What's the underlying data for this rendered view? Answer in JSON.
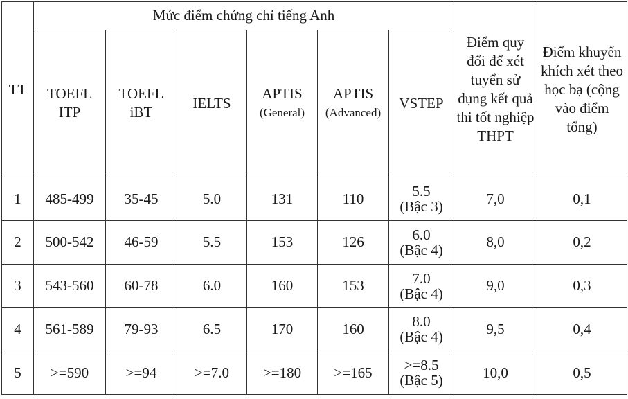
{
  "table": {
    "col_tt": "TT",
    "group_header": "Mức điểm chứng chỉ tiếng Anh",
    "col_conversion": "Điểm quy đổi để xét tuyển sử dụng kết quả thi tốt nghiệp THPT",
    "col_bonus": "Điểm khuyến khích xét theo học bạ (cộng vào điểm tổng)",
    "sub_headers": [
      {
        "line1": "TOEFL",
        "line2": "ITP"
      },
      {
        "line1": "TOEFL",
        "line2": "iBT"
      },
      {
        "line1": "IELTS",
        "line2": ""
      },
      {
        "line1": "APTIS",
        "line2": "(General)"
      },
      {
        "line1": "APTIS",
        "line2": "(Advanced)"
      },
      {
        "line1": "VSTEP",
        "line2": ""
      }
    ],
    "rows": [
      {
        "tt": "1",
        "itp": "485-499",
        "ibt": "35-45",
        "ielts": "5.0",
        "aptis_g": "131",
        "aptis_a": "110",
        "vstep": "5.5",
        "vstep_level": "(Bậc 3)",
        "conversion": "7,0",
        "bonus": "0,1"
      },
      {
        "tt": "2",
        "itp": "500-542",
        "ibt": "46-59",
        "ielts": "5.5",
        "aptis_g": "153",
        "aptis_a": "126",
        "vstep": "6.0",
        "vstep_level": "(Bậc 4)",
        "conversion": "8,0",
        "bonus": "0,2"
      },
      {
        "tt": "3",
        "itp": "543-560",
        "ibt": "60-78",
        "ielts": "6.0",
        "aptis_g": "160",
        "aptis_a": "153",
        "vstep": "7.0",
        "vstep_level": "(Bậc 4)",
        "conversion": "9,0",
        "bonus": "0,3"
      },
      {
        "tt": "4",
        "itp": "561-589",
        "ibt": "79-93",
        "ielts": "6.5",
        "aptis_g": "170",
        "aptis_a": "160",
        "vstep": "8.0",
        "vstep_level": "(Bậc 4)",
        "conversion": "9,5",
        "bonus": "0,4"
      },
      {
        "tt": "5",
        "itp": ">=590",
        "ibt": ">=94",
        "ielts": ">=7.0",
        "aptis_g": ">=180",
        "aptis_a": ">=165",
        "vstep": ">=8.5",
        "vstep_level": "(Bậc 5)",
        "conversion": "10,0",
        "bonus": "0,5"
      }
    ]
  }
}
